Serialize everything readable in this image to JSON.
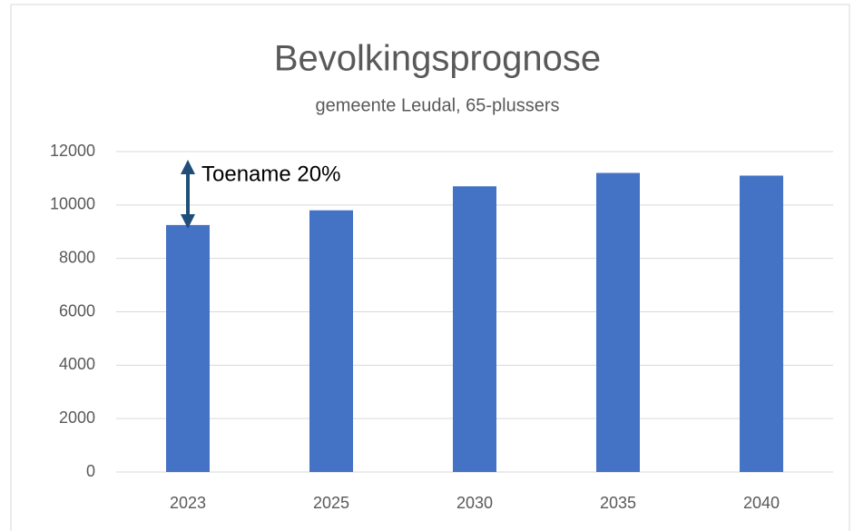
{
  "chart_data": {
    "type": "bar",
    "title": "Bevolkingsprognose",
    "subtitle": "gemeente Leudal, 65-plussers",
    "categories": [
      "2023",
      "2025",
      "2030",
      "2035",
      "2040"
    ],
    "values": [
      9250,
      9800,
      10700,
      11200,
      11100
    ],
    "color": "#4472c4",
    "ylim": [
      0,
      12000
    ],
    "yticks": [
      0,
      2000,
      4000,
      6000,
      8000,
      10000,
      12000
    ],
    "grid": true,
    "annotation": "Toename 20%"
  }
}
